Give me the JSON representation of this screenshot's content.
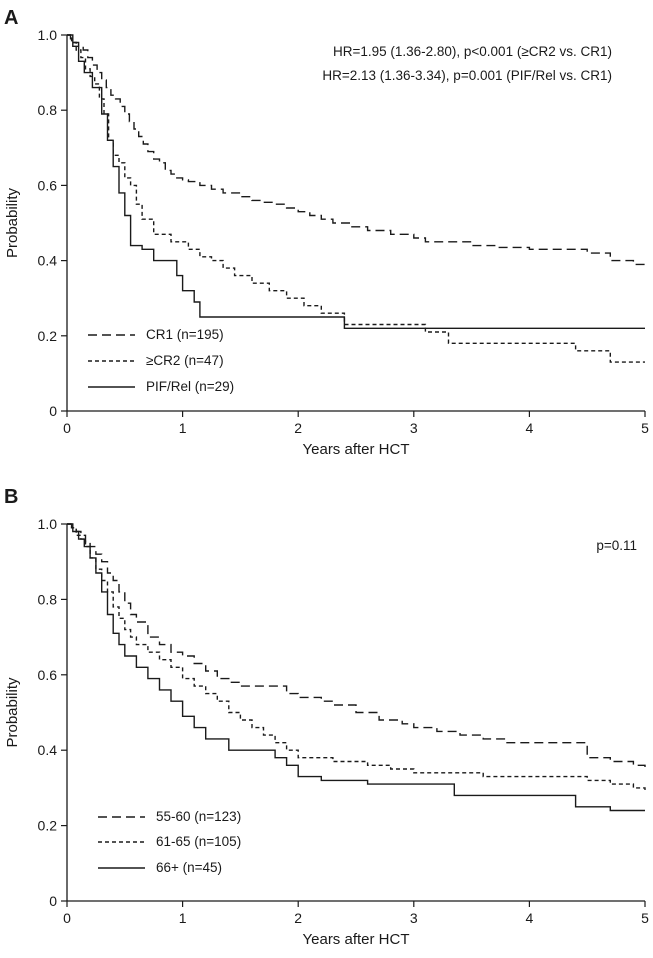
{
  "chart_data": [
    {
      "type": "line",
      "panel_label": "A",
      "xlabel": "Years after HCT",
      "ylabel": "Probability",
      "xlim": [
        0,
        5
      ],
      "ylim": [
        0,
        1
      ],
      "x_ticks": [
        "0",
        "1",
        "2",
        "3",
        "4",
        "5"
      ],
      "y_ticks": [
        "0",
        "0.2",
        "0.4",
        "0.6",
        "0.8",
        "1.0"
      ],
      "grid": false,
      "annotations": [
        "HR=1.95 (1.36-2.80), p<0.001 (≥CR2 vs. CR1)",
        "HR=2.13 (1.36-3.34), p=0.001 (PIF/Rel vs. CR1)"
      ],
      "legend_position": "bottom-left",
      "series": [
        {
          "name": "CR1 (n=195)",
          "linestyle": "long-dash",
          "x": [
            0,
            0.03,
            0.06,
            0.1,
            0.14,
            0.18,
            0.22,
            0.26,
            0.3,
            0.34,
            0.38,
            0.42,
            0.46,
            0.5,
            0.54,
            0.58,
            0.62,
            0.66,
            0.7,
            0.75,
            0.8,
            0.85,
            0.9,
            0.95,
            1.0,
            1.05,
            1.15,
            1.25,
            1.35,
            1.5,
            1.6,
            1.7,
            1.8,
            1.9,
            2.0,
            2.1,
            2.2,
            2.3,
            2.45,
            2.6,
            2.8,
            3.0,
            3.1,
            3.3,
            3.5,
            3.7,
            4.0,
            4.3,
            4.5,
            4.7,
            4.9,
            5.0
          ],
          "y": [
            1.0,
            0.99,
            0.98,
            0.97,
            0.96,
            0.94,
            0.92,
            0.9,
            0.88,
            0.86,
            0.84,
            0.83,
            0.81,
            0.79,
            0.77,
            0.75,
            0.73,
            0.71,
            0.69,
            0.67,
            0.66,
            0.64,
            0.63,
            0.62,
            0.615,
            0.61,
            0.6,
            0.59,
            0.58,
            0.57,
            0.56,
            0.555,
            0.55,
            0.54,
            0.53,
            0.52,
            0.51,
            0.5,
            0.49,
            0.48,
            0.47,
            0.46,
            0.45,
            0.45,
            0.44,
            0.435,
            0.43,
            0.43,
            0.42,
            0.4,
            0.39,
            0.38
          ]
        },
        {
          "name": "≥CR2 (n=47)",
          "linestyle": "short-dash",
          "x": [
            0,
            0.04,
            0.08,
            0.12,
            0.16,
            0.2,
            0.24,
            0.28,
            0.32,
            0.36,
            0.4,
            0.45,
            0.5,
            0.55,
            0.6,
            0.65,
            0.75,
            0.9,
            1.05,
            1.15,
            1.25,
            1.35,
            1.45,
            1.6,
            1.75,
            1.9,
            2.05,
            2.2,
            2.4,
            2.7,
            3.1,
            3.3,
            3.6,
            3.9,
            4.4,
            4.7,
            5.0
          ],
          "y": [
            1.0,
            0.98,
            0.96,
            0.94,
            0.91,
            0.89,
            0.87,
            0.83,
            0.79,
            0.72,
            0.68,
            0.66,
            0.62,
            0.6,
            0.55,
            0.51,
            0.47,
            0.45,
            0.43,
            0.41,
            0.4,
            0.38,
            0.36,
            0.34,
            0.32,
            0.3,
            0.28,
            0.26,
            0.23,
            0.23,
            0.21,
            0.18,
            0.18,
            0.18,
            0.16,
            0.13,
            0.13
          ]
        },
        {
          "name": "PIF/Rel (n=29)",
          "linestyle": "solid",
          "x": [
            0,
            0.05,
            0.1,
            0.15,
            0.22,
            0.3,
            0.35,
            0.4,
            0.45,
            0.5,
            0.55,
            0.65,
            0.75,
            0.95,
            1.0,
            1.1,
            1.15,
            1.9,
            2.4,
            5.0
          ],
          "y": [
            1.0,
            0.97,
            0.93,
            0.9,
            0.86,
            0.79,
            0.72,
            0.65,
            0.58,
            0.52,
            0.44,
            0.43,
            0.4,
            0.36,
            0.32,
            0.29,
            0.25,
            0.25,
            0.22,
            0.22
          ]
        }
      ]
    },
    {
      "type": "line",
      "panel_label": "B",
      "xlabel": "Years after HCT",
      "ylabel": "Probability",
      "xlim": [
        0,
        5
      ],
      "ylim": [
        0,
        1
      ],
      "x_ticks": [
        "0",
        "1",
        "2",
        "3",
        "4",
        "5"
      ],
      "y_ticks": [
        "0",
        "0.2",
        "0.4",
        "0.6",
        "0.8",
        "1.0"
      ],
      "grid": false,
      "annotations": [
        "p=0.11"
      ],
      "legend_position": "bottom-left",
      "series": [
        {
          "name": "55-60 (n=123)",
          "linestyle": "long-dash",
          "x": [
            0,
            0.04,
            0.08,
            0.12,
            0.16,
            0.2,
            0.25,
            0.3,
            0.35,
            0.4,
            0.45,
            0.5,
            0.55,
            0.6,
            0.7,
            0.8,
            0.9,
            1.0,
            1.1,
            1.2,
            1.3,
            1.4,
            1.5,
            1.7,
            1.9,
            2.0,
            2.2,
            2.3,
            2.5,
            2.7,
            2.9,
            3.0,
            3.2,
            3.4,
            3.6,
            3.8,
            4.0,
            4.2,
            4.45,
            4.5,
            4.7,
            4.9,
            5.0
          ],
          "y": [
            1.0,
            0.99,
            0.98,
            0.97,
            0.95,
            0.94,
            0.92,
            0.9,
            0.87,
            0.85,
            0.82,
            0.79,
            0.76,
            0.74,
            0.7,
            0.68,
            0.66,
            0.65,
            0.63,
            0.61,
            0.59,
            0.58,
            0.57,
            0.57,
            0.55,
            0.54,
            0.53,
            0.52,
            0.5,
            0.48,
            0.47,
            0.46,
            0.45,
            0.44,
            0.43,
            0.42,
            0.42,
            0.42,
            0.42,
            0.38,
            0.37,
            0.36,
            0.35
          ]
        },
        {
          "name": "61-65 (n=105)",
          "linestyle": "short-dash",
          "x": [
            0,
            0.04,
            0.08,
            0.12,
            0.16,
            0.2,
            0.25,
            0.3,
            0.35,
            0.4,
            0.45,
            0.5,
            0.55,
            0.6,
            0.7,
            0.8,
            0.9,
            1.0,
            1.1,
            1.2,
            1.3,
            1.4,
            1.5,
            1.6,
            1.7,
            1.8,
            1.9,
            2.0,
            2.3,
            2.6,
            2.8,
            3.0,
            3.2,
            3.6,
            4.0,
            4.5,
            4.7,
            4.9,
            5.0
          ],
          "y": [
            1.0,
            0.99,
            0.97,
            0.96,
            0.94,
            0.91,
            0.88,
            0.85,
            0.82,
            0.78,
            0.75,
            0.72,
            0.7,
            0.68,
            0.66,
            0.64,
            0.62,
            0.59,
            0.57,
            0.55,
            0.53,
            0.5,
            0.48,
            0.46,
            0.44,
            0.42,
            0.4,
            0.38,
            0.37,
            0.36,
            0.35,
            0.34,
            0.34,
            0.33,
            0.33,
            0.32,
            0.31,
            0.3,
            0.29
          ]
        },
        {
          "name": "66+ (n=45)",
          "linestyle": "solid",
          "x": [
            0,
            0.05,
            0.1,
            0.15,
            0.2,
            0.25,
            0.3,
            0.35,
            0.4,
            0.45,
            0.5,
            0.6,
            0.7,
            0.8,
            0.9,
            1.0,
            1.1,
            1.2,
            1.4,
            1.8,
            1.9,
            2.0,
            2.2,
            2.6,
            3.0,
            3.35,
            3.8,
            4.4,
            4.7,
            5.0
          ],
          "y": [
            1.0,
            0.98,
            0.96,
            0.94,
            0.91,
            0.87,
            0.82,
            0.76,
            0.71,
            0.68,
            0.65,
            0.62,
            0.59,
            0.56,
            0.53,
            0.49,
            0.46,
            0.43,
            0.4,
            0.38,
            0.36,
            0.33,
            0.32,
            0.31,
            0.31,
            0.28,
            0.28,
            0.25,
            0.24,
            0.24
          ]
        }
      ]
    }
  ]
}
